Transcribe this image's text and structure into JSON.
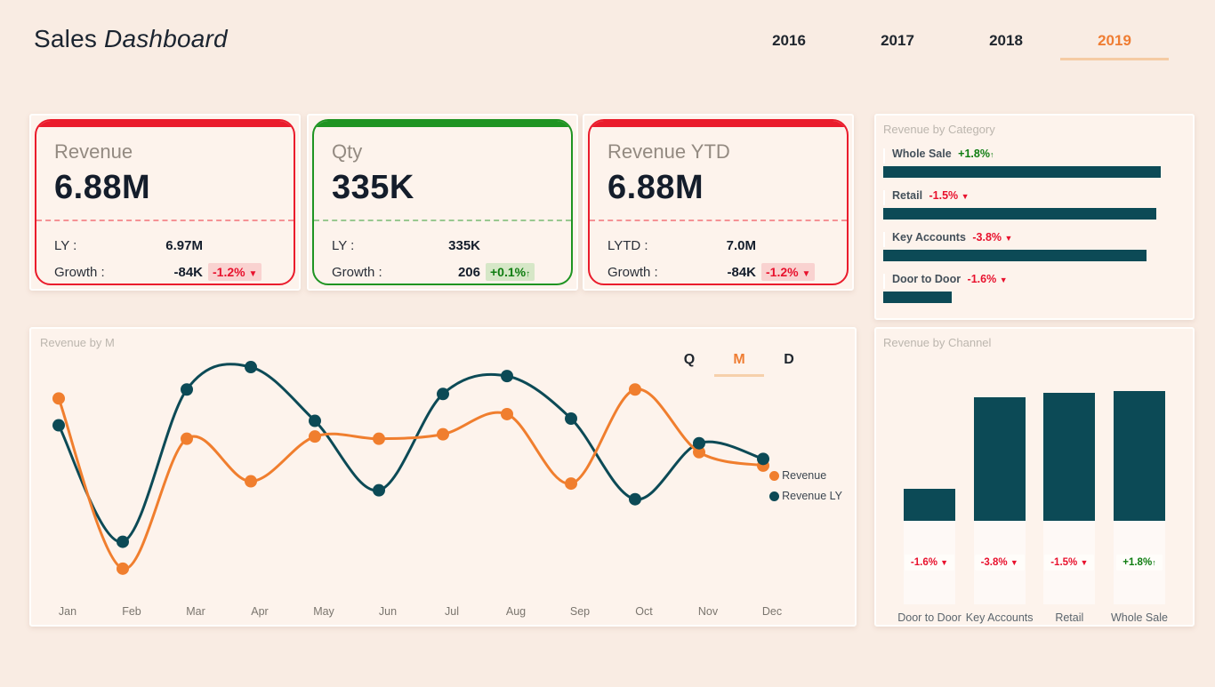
{
  "header": {
    "title_regular": "Sales",
    "title_italic": "Dashboard",
    "years": [
      {
        "label": "2016",
        "active": false
      },
      {
        "label": "2017",
        "active": false
      },
      {
        "label": "2018",
        "active": false
      },
      {
        "label": "2019",
        "active": true
      }
    ]
  },
  "colors": {
    "page_bg": "#f9ece3",
    "panel_bg": "#fdf3ec",
    "accent_red": "#ea1c2c",
    "accent_green": "#1f9422",
    "teal": "#0c4a56",
    "orange": "#f07e2e",
    "badge_neg_text": "#e8112d",
    "badge_neg_bg": "#f9d2d0",
    "badge_pos_text": "#0e7c10",
    "badge_pos_bg": "#d6e7c7",
    "active_tab": "#ef7d33"
  },
  "kpi_cards": [
    {
      "title": "Revenue",
      "value": "6.88M",
      "accent": "#ea1c2c",
      "accent_dim": "rgba(234,28,44,0.45)",
      "rows": [
        {
          "label": "LY :",
          "value": "6.97M",
          "badge": null
        },
        {
          "label": "Growth :",
          "value": "-84K",
          "badge": {
            "text": "-1.2% ",
            "arrow": "▼",
            "positive": false
          }
        }
      ]
    },
    {
      "title": "Qty",
      "value": "335K",
      "accent": "#1f9422",
      "accent_dim": "rgba(31,148,34,0.45)",
      "rows": [
        {
          "label": "LY :",
          "value": "335K",
          "badge": null
        },
        {
          "label": "Growth :",
          "value": "206",
          "badge": {
            "text": "+0.1%",
            "arrow": "↑",
            "positive": true
          }
        }
      ]
    },
    {
      "title": "Revenue YTD",
      "value": "6.88M",
      "accent": "#ea1c2c",
      "accent_dim": "rgba(234,28,44,0.45)",
      "rows": [
        {
          "label": "LYTD :",
          "value": "7.0M",
          "badge": null
        },
        {
          "label": "Growth :",
          "value": "-84K",
          "badge": {
            "text": "-1.2% ",
            "arrow": "▼",
            "positive": false
          }
        }
      ]
    }
  ],
  "chart_data": [
    {
      "id": "revenue_by_month",
      "type": "line",
      "title": "Revenue by M",
      "toggle": {
        "options": [
          "Q",
          "M",
          "D"
        ],
        "active": "M"
      },
      "x": [
        "Jan",
        "Feb",
        "Mar",
        "Apr",
        "May",
        "Jun",
        "Jul",
        "Aug",
        "Sep",
        "Oct",
        "Nov",
        "Dec"
      ],
      "series": [
        {
          "name": "Revenue",
          "color": "#f07e2e",
          "values": [
            84,
            8,
            66,
            47,
            67,
            66,
            68,
            77,
            46,
            88,
            60,
            54
          ]
        },
        {
          "name": "Revenue LY",
          "color": "#0c4a56",
          "values": [
            72,
            20,
            88,
            98,
            74,
            43,
            86,
            94,
            75,
            39,
            64,
            57
          ]
        }
      ],
      "ylim": [
        0,
        100
      ],
      "grid": false,
      "legend_position": "right"
    },
    {
      "id": "revenue_by_category",
      "type": "bar",
      "orientation": "horizontal",
      "title": "Revenue by Category",
      "categories": [
        "Whole Sale",
        "Retail",
        "Key Accounts",
        "Door to Door"
      ],
      "values": [
        100,
        98.5,
        95,
        24.7
      ],
      "badges": [
        {
          "text": "+1.8%",
          "arrow": "↑",
          "positive": true
        },
        {
          "text": "-1.5% ",
          "arrow": "▼",
          "positive": false
        },
        {
          "text": "-3.8% ",
          "arrow": "▼",
          "positive": false
        },
        {
          "text": "-1.6% ",
          "arrow": "▼",
          "positive": false
        }
      ],
      "bar_color": "#0c4a56",
      "xlim": [
        0,
        100
      ]
    },
    {
      "id": "revenue_by_channel",
      "type": "bar",
      "orientation": "vertical",
      "title": "Revenue by Channel",
      "categories": [
        "Door to Door",
        "Key Accounts",
        "Retail",
        "Whole Sale"
      ],
      "values": [
        24.8,
        95.2,
        98.6,
        100
      ],
      "badges": [
        {
          "text": "-1.6% ",
          "arrow": "▼",
          "positive": false
        },
        {
          "text": "-3.8% ",
          "arrow": "▼",
          "positive": false
        },
        {
          "text": "-1.5% ",
          "arrow": "▼",
          "positive": false
        },
        {
          "text": "+1.8%",
          "arrow": "↑",
          "positive": true
        }
      ],
      "bar_color": "#0c4a56",
      "ylim": [
        0,
        100
      ]
    }
  ]
}
